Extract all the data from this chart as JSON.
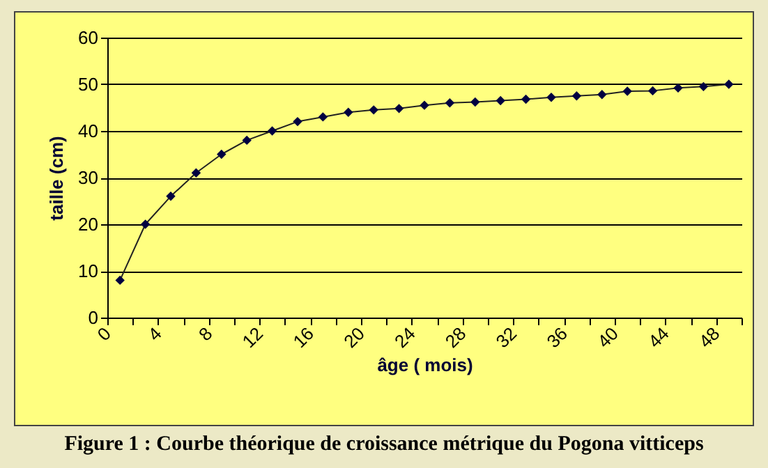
{
  "chart_data": {
    "type": "line",
    "xlabel": "âge ( mois)",
    "ylabel": "taille (cm)",
    "x": [
      1,
      3,
      5,
      7,
      9,
      11,
      13,
      15,
      17,
      19,
      21,
      23,
      25,
      27,
      29,
      31,
      33,
      35,
      37,
      39,
      41,
      43,
      45,
      47,
      49
    ],
    "series": [
      {
        "color": "#000040",
        "values": [
          8,
          20,
          26,
          31,
          35,
          38,
          40,
          42,
          43,
          44,
          44.5,
          44.8,
          45.5,
          46,
          46.2,
          46.5,
          46.8,
          47.2,
          47.5,
          47.8,
          48.5,
          48.6,
          49.2,
          49.5,
          50
        ]
      }
    ],
    "xlim": [
      0,
      50
    ],
    "xticks": [
      0,
      {
        "value": 2,
        "label": null
      },
      4,
      {
        "value": 6,
        "label": null
      },
      8,
      {
        "value": 10,
        "label": null
      },
      12,
      {
        "value": 14,
        "label": null
      },
      16,
      {
        "value": 18,
        "label": null
      },
      20,
      {
        "value": 22,
        "label": null
      },
      24,
      {
        "value": 26,
        "label": null
      },
      28,
      {
        "value": 30,
        "label": null
      },
      32,
      {
        "value": 34,
        "label": null
      },
      36,
      {
        "value": 38,
        "label": null
      },
      40,
      {
        "value": 42,
        "label": null
      },
      44,
      {
        "value": 46,
        "label": null
      },
      48,
      {
        "value": 50,
        "label": null
      }
    ],
    "ylim": [
      0,
      60
    ],
    "yticks": [
      0,
      10,
      20,
      30,
      40,
      50,
      60
    ],
    "grid": "y",
    "marker": "diamond",
    "line_style": "solid",
    "annotations": [
      "Figure 1 : Courbe théorique de croissance métrique du Pogona vitticeps"
    ]
  }
}
